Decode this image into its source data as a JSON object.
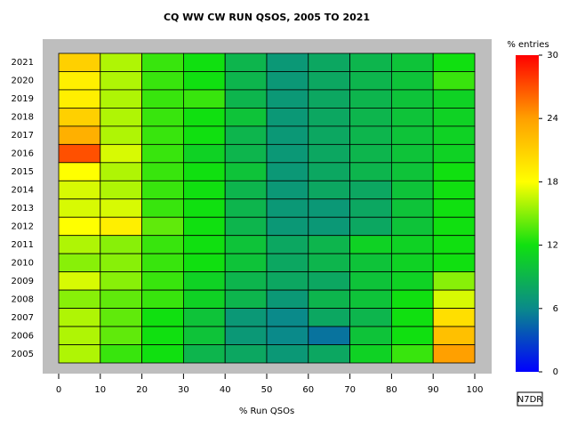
{
  "chart_data": {
    "type": "heatmap",
    "title": "CQ WW CW RUN QSOS, 2005 TO 2021",
    "x_label": "% Run QSOs",
    "colorbar_label": "% entries",
    "annotation": "N7DR",
    "categories": [
      "2021",
      "2020",
      "2019",
      "2018",
      "2017",
      "2016",
      "2015",
      "2014",
      "2013",
      "2012",
      "2011",
      "2010",
      "2009",
      "2008",
      "2007",
      "2006",
      "2005"
    ],
    "bins": [
      0,
      10,
      20,
      30,
      40,
      50,
      60,
      70,
      80,
      90,
      100
    ],
    "values": [
      [
        21,
        16,
        13,
        12,
        9,
        7,
        8,
        9,
        10,
        12
      ],
      [
        19,
        16,
        13,
        12,
        9,
        7,
        8,
        9,
        10,
        13
      ],
      [
        19,
        16,
        13,
        13,
        9,
        7,
        8,
        9,
        10,
        11
      ],
      [
        21,
        16,
        13,
        12,
        10,
        7,
        8,
        9,
        10,
        11
      ],
      [
        23,
        16,
        13,
        12,
        9,
        7,
        8,
        9,
        10,
        11
      ],
      [
        27,
        17,
        13,
        11,
        9,
        7,
        8,
        9,
        10,
        11
      ],
      [
        18,
        16,
        13,
        12,
        10,
        7,
        8,
        9,
        10,
        12
      ],
      [
        17,
        16,
        13,
        12,
        9,
        7,
        8,
        8,
        10,
        12
      ],
      [
        17,
        17,
        13,
        12,
        9,
        7,
        7,
        8,
        10,
        12
      ],
      [
        18,
        19,
        14,
        12,
        9,
        7,
        7,
        8,
        10,
        12
      ],
      [
        16,
        15,
        13,
        12,
        10,
        8,
        9,
        11,
        11,
        12
      ],
      [
        15,
        15,
        13,
        12,
        10,
        8,
        9,
        10,
        11,
        12
      ],
      [
        17,
        15,
        13,
        11,
        9,
        8,
        8,
        10,
        11,
        15
      ],
      [
        15,
        14,
        13,
        11,
        9,
        7,
        9,
        10,
        12,
        17
      ],
      [
        16,
        14,
        12,
        10,
        7,
        6,
        8,
        9,
        12,
        20
      ],
      [
        16,
        14,
        12,
        10,
        7,
        6,
        5,
        10,
        12,
        22
      ],
      [
        16,
        13,
        12,
        9,
        8,
        7,
        8,
        11,
        13,
        24
      ]
    ],
    "xlim": [
      0,
      100
    ],
    "xticks": [
      0,
      10,
      20,
      30,
      40,
      50,
      60,
      70,
      80,
      90,
      100
    ],
    "clim": [
      0,
      30
    ],
    "cticks": [
      0,
      6,
      12,
      18,
      24,
      30
    ],
    "colorscale": [
      "#0000ff",
      "#0a8a8a",
      "#10e010",
      "#ffff00",
      "#ffa000",
      "#ff0000"
    ],
    "frame_color": "#bebebe"
  }
}
